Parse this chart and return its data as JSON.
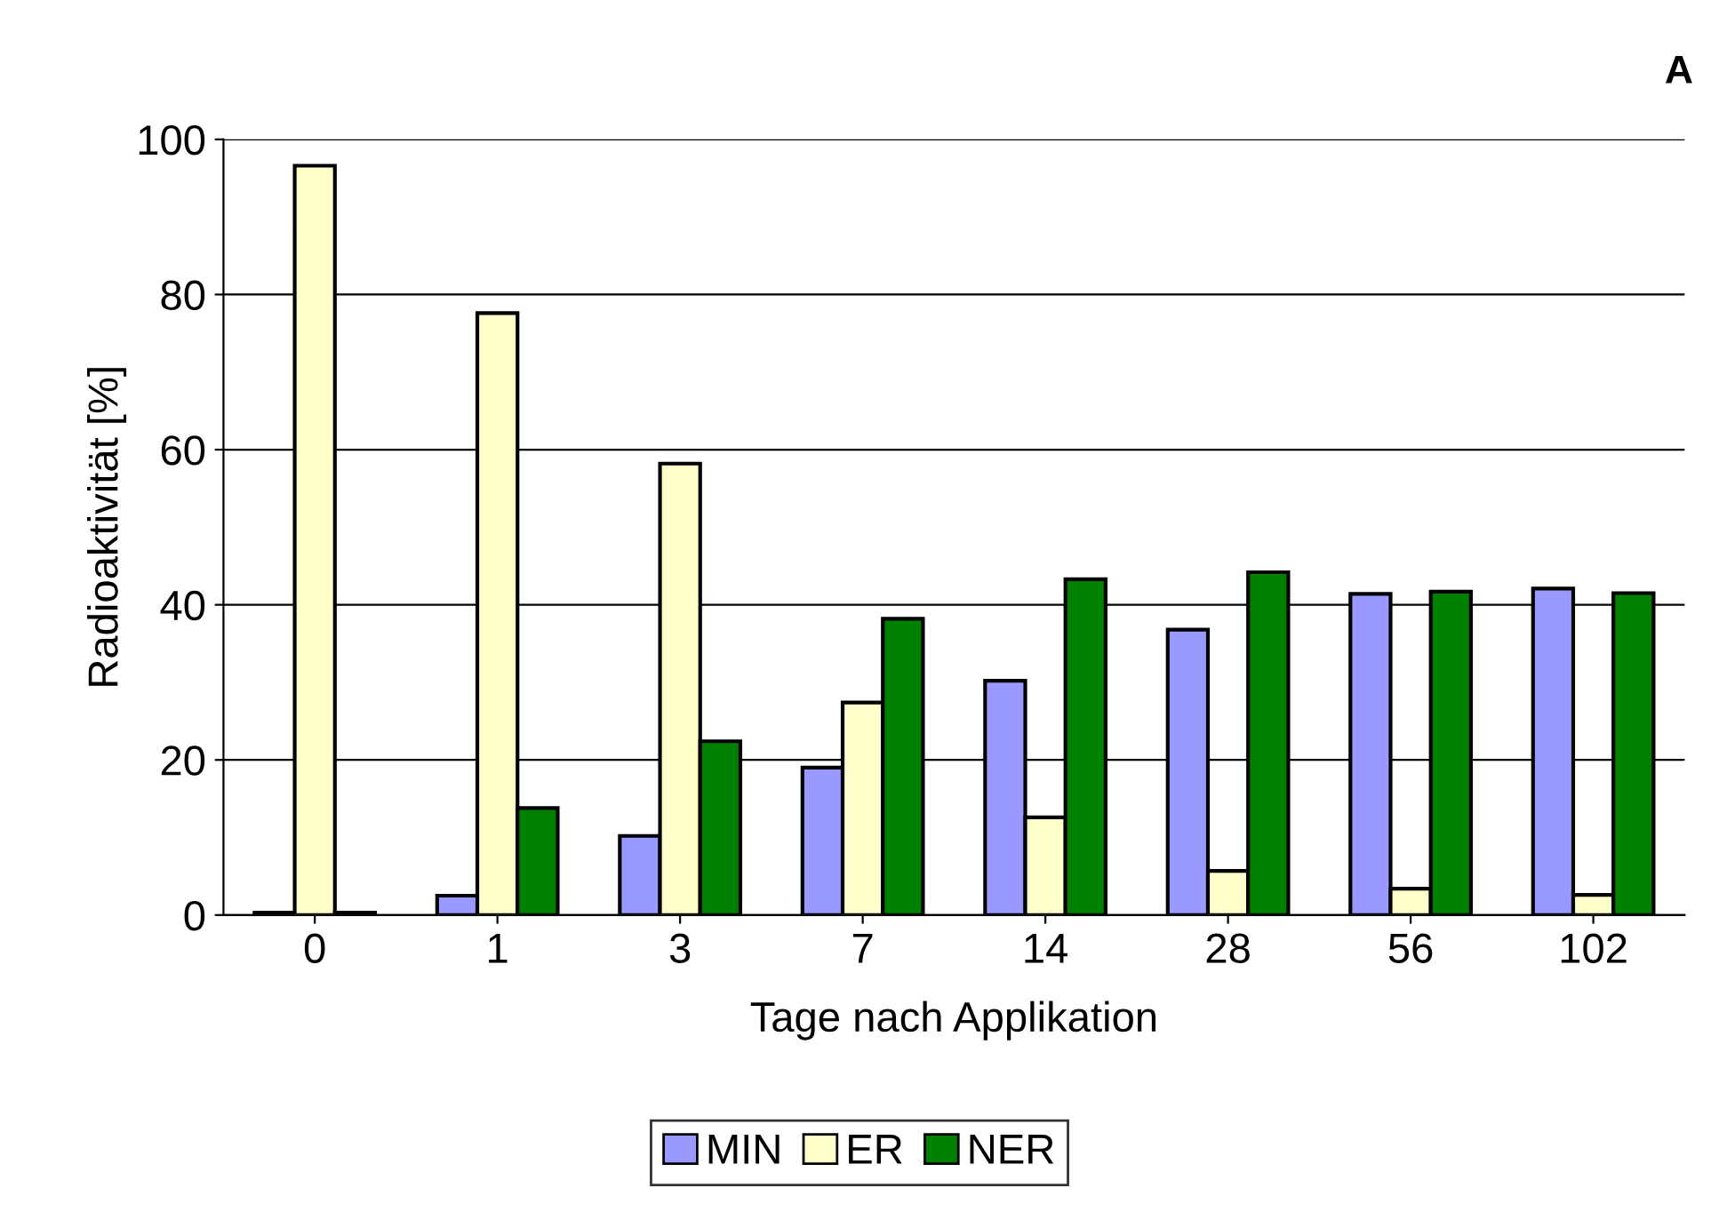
{
  "chart_data": {
    "type": "bar",
    "xlabel": "Tage nach Applikation",
    "ylabel": "Radioaktivität [%]",
    "annotations": [
      "A"
    ],
    "categories": [
      "0",
      "1",
      "3",
      "7",
      "14",
      "28",
      "56",
      "102"
    ],
    "series": [
      {
        "name": "MIN",
        "color": "#9999ff",
        "values": [
          0.3,
          2.5,
          10.2,
          19,
          30.2,
          36.8,
          41.4,
          42.1
        ]
      },
      {
        "name": "ER",
        "color": "#ffffcc",
        "values": [
          96.6,
          77.6,
          58.2,
          27.4,
          12.6,
          5.7,
          3.4,
          2.6
        ]
      },
      {
        "name": "NER",
        "color": "#008000",
        "values": [
          0.3,
          13.8,
          22.4,
          38.2,
          43.3,
          44.2,
          41.7,
          41.5
        ]
      }
    ],
    "ylim": [
      0,
      100
    ],
    "yticks": [
      0,
      20,
      40,
      60,
      80,
      100
    ],
    "grid": "y",
    "legend": "bottom"
  }
}
